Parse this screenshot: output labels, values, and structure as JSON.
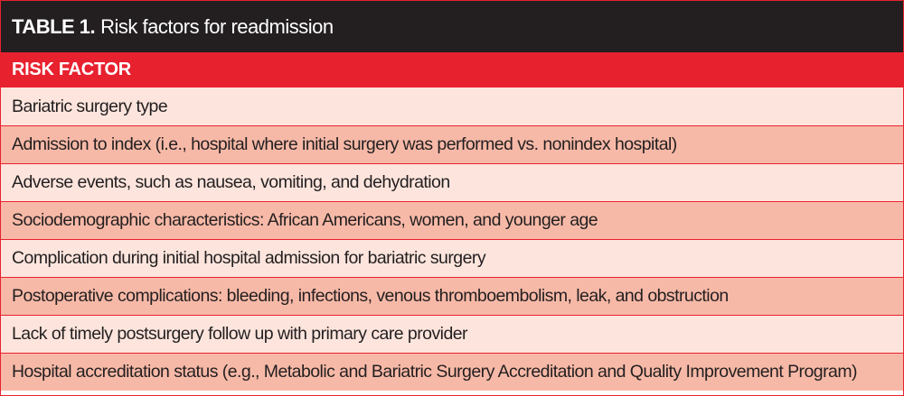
{
  "table": {
    "title_label": "TABLE 1.",
    "title_text": "Risk factors for readmission",
    "column_header": "RISK FACTOR",
    "rows": [
      "Bariatric surgery type",
      "Admission to index (i.e., hospital where initial surgery was performed vs. nonindex hospital)",
      "Adverse events, such as nausea, vomiting, and dehydration",
      "Sociodemographic characteristics: African Americans, women, and younger age",
      "Complication during initial hospital admission for bariatric surgery",
      "Postoperative complications: bleeding, infections, venous thromboembolism, leak, and obstruction",
      "Lack of timely postsurgery follow up with primary care provider",
      "Hospital accreditation status (e.g., Metabolic and Bariatric Surgery Accreditation and Quality Improvement Program)"
    ]
  },
  "colors": {
    "title_background": "#231f20",
    "header_background": "#e8212f",
    "row_light": "#fde5dd",
    "row_dark": "#f7b9a7",
    "border": "#e8212f"
  }
}
